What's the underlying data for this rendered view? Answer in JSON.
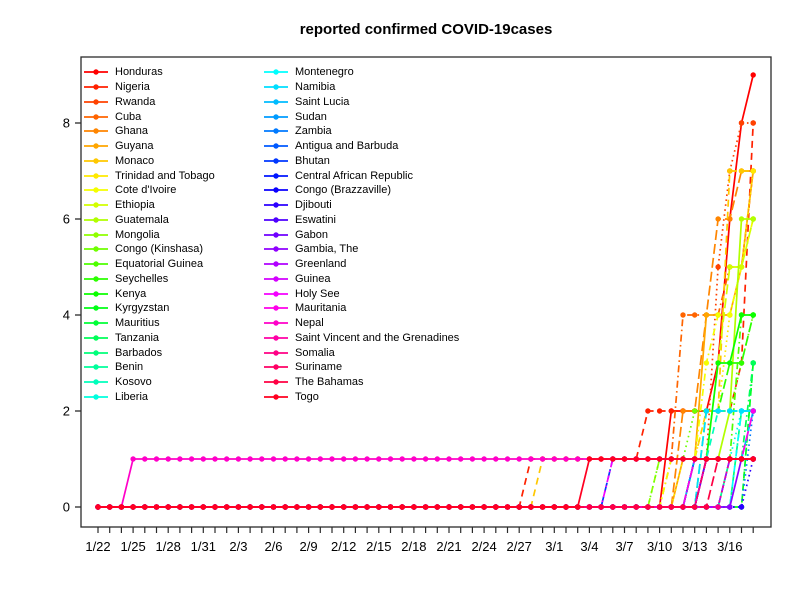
{
  "chart_data": {
    "type": "line",
    "title": "reported confirmed COVID-19cases",
    "xlabel": "",
    "ylabel": "",
    "background": "#FFFFFF",
    "axis_color": "#000000",
    "grid": false,
    "legend_position": "top-left inside plot, two columns",
    "ylim": [
      0,
      9
    ],
    "y_ticks": [
      0,
      2,
      4,
      6,
      8
    ],
    "n_days": 57,
    "x_start_date": "1/22",
    "x_label_step_days": 3,
    "x_tick_labels": [
      "1/22",
      "1/25",
      "1/28",
      "1/31",
      "2/3",
      "2/6",
      "2/9",
      "2/12",
      "2/15",
      "2/18",
      "2/21",
      "2/24",
      "2/27",
      "3/1",
      "3/4",
      "3/7",
      "3/10",
      "3/13",
      "3/16"
    ],
    "steps_format": "steps = [day_index_from_1/22, cumulative_cases]; series value is 0 before first step and holds last value through day 56",
    "series": [
      {
        "name": "Honduras",
        "color": "#FF0000",
        "line_style": "solid",
        "steps": [
          [
            49,
            2
          ],
          [
            53,
            3
          ],
          [
            54,
            6
          ],
          [
            55,
            8
          ],
          [
            56,
            9
          ]
        ],
        "final": 9
      },
      {
        "name": "Nigeria",
        "color": "#FF2100",
        "line_style": "dashed",
        "steps": [
          [
            37,
            1
          ],
          [
            47,
            2
          ],
          [
            55,
            3
          ],
          [
            56,
            8
          ]
        ],
        "final": 8
      },
      {
        "name": "Rwanda",
        "color": "#FF4200",
        "line_style": "dotted",
        "steps": [
          [
            52,
            1
          ],
          [
            53,
            5
          ],
          [
            54,
            7
          ],
          [
            55,
            8
          ]
        ],
        "final": 8
      },
      {
        "name": "Cuba",
        "color": "#FF6400",
        "line_style": "dotdash",
        "steps": [
          [
            49,
            1
          ],
          [
            50,
            4
          ],
          [
            54,
            5
          ],
          [
            56,
            7
          ]
        ],
        "final": 7
      },
      {
        "name": "Ghana",
        "color": "#FF8500",
        "line_style": "longdash",
        "steps": [
          [
            50,
            2
          ],
          [
            52,
            4
          ],
          [
            53,
            6
          ],
          [
            55,
            7
          ]
        ],
        "final": 7
      },
      {
        "name": "Guyana",
        "color": "#FFA600",
        "line_style": "solid",
        "steps": [
          [
            50,
            1
          ],
          [
            52,
            4
          ],
          [
            55,
            5
          ],
          [
            56,
            7
          ]
        ],
        "final": 7
      },
      {
        "name": "Monaco",
        "color": "#FFC800",
        "line_style": "dashed",
        "steps": [
          [
            38,
            1
          ],
          [
            52,
            2
          ],
          [
            54,
            7
          ]
        ],
        "final": 7
      },
      {
        "name": "Trinidad and Tobago",
        "color": "#FFE900",
        "line_style": "dotted",
        "steps": [
          [
            50,
            1
          ],
          [
            52,
            2
          ],
          [
            54,
            4
          ],
          [
            55,
            5
          ],
          [
            56,
            7
          ]
        ],
        "final": 7
      },
      {
        "name": "Cote d'Ivoire",
        "color": "#F4FF00",
        "line_style": "dotdash",
        "steps": [
          [
            49,
            1
          ],
          [
            52,
            3
          ],
          [
            53,
            4
          ],
          [
            55,
            5
          ],
          [
            56,
            6
          ]
        ],
        "final": 6
      },
      {
        "name": "Ethiopia",
        "color": "#D3FF00",
        "line_style": "longdash",
        "steps": [
          [
            51,
            1
          ],
          [
            53,
            3
          ],
          [
            54,
            5
          ],
          [
            56,
            6
          ]
        ],
        "final": 6
      },
      {
        "name": "Guatemala",
        "color": "#B1FF00",
        "line_style": "solid",
        "steps": [
          [
            52,
            1
          ],
          [
            54,
            2
          ],
          [
            55,
            6
          ]
        ],
        "final": 6
      },
      {
        "name": "Mongolia",
        "color": "#90FF00",
        "line_style": "dashed",
        "steps": [
          [
            48,
            1
          ]
        ],
        "final": 1
      },
      {
        "name": "Congo (Kinshasa)",
        "color": "#6FFF00",
        "line_style": "dotted",
        "steps": [
          [
            48,
            1
          ],
          [
            51,
            2
          ],
          [
            55,
            3
          ],
          [
            56,
            4
          ]
        ],
        "final": 4
      },
      {
        "name": "Equatorial Guinea",
        "color": "#4EFF00",
        "line_style": "dotdash",
        "steps": [
          [
            52,
            1
          ],
          [
            55,
            4
          ]
        ],
        "final": 4
      },
      {
        "name": "Seychelles",
        "color": "#2CFF00",
        "line_style": "longdash",
        "steps": [
          [
            52,
            2
          ],
          [
            54,
            3
          ],
          [
            56,
            4
          ]
        ],
        "final": 4
      },
      {
        "name": "Kenya",
        "color": "#0BFF00",
        "line_style": "solid",
        "steps": [
          [
            51,
            1
          ],
          [
            53,
            3
          ],
          [
            55,
            4
          ]
        ],
        "final": 4
      },
      {
        "name": "Kyrgyzstan",
        "color": "#00FF16",
        "line_style": "dashed",
        "steps": [
          [
            56,
            3
          ]
        ],
        "final": 3
      },
      {
        "name": "Mauritius",
        "color": "#00FF37",
        "line_style": "dotted",
        "steps": [
          [
            56,
            3
          ]
        ],
        "final": 3
      },
      {
        "name": "Tanzania",
        "color": "#00FF59",
        "line_style": "dotdash",
        "steps": [
          [
            54,
            1
          ],
          [
            56,
            3
          ]
        ],
        "final": 3
      },
      {
        "name": "Barbados",
        "color": "#00FF7A",
        "line_style": "longdash",
        "steps": [
          [
            55,
            2
          ]
        ],
        "final": 2
      },
      {
        "name": "Benin",
        "color": "#00FF9B",
        "line_style": "solid",
        "steps": [
          [
            54,
            1
          ]
        ],
        "final": 1
      },
      {
        "name": "Kosovo",
        "color": "#00FFBC",
        "line_style": "dashed",
        "steps": [
          [
            51,
            1
          ],
          [
            53,
            2
          ]
        ],
        "final": 2
      },
      {
        "name": "Liberia",
        "color": "#00FFDE",
        "line_style": "dotted",
        "steps": [
          [
            54,
            1
          ],
          [
            55,
            2
          ]
        ],
        "final": 2
      },
      {
        "name": "Montenegro",
        "color": "#00FFFF",
        "line_style": "dotdash",
        "steps": [
          [
            55,
            2
          ]
        ],
        "final": 2
      },
      {
        "name": "Namibia",
        "color": "#00DEFF",
        "line_style": "longdash",
        "steps": [
          [
            52,
            2
          ]
        ],
        "final": 2
      },
      {
        "name": "Saint Lucia",
        "color": "#00BCFF",
        "line_style": "solid",
        "steps": [
          [
            51,
            1
          ],
          [
            56,
            2
          ]
        ],
        "final": 2
      },
      {
        "name": "Sudan",
        "color": "#009BFF",
        "line_style": "dashed",
        "steps": [
          [
            51,
            1
          ]
        ],
        "final": 1
      },
      {
        "name": "Zambia",
        "color": "#007AFF",
        "line_style": "dotted",
        "steps": [
          [
            56,
            2
          ]
        ],
        "final": 2
      },
      {
        "name": "Antigua and Barbuda",
        "color": "#0059FF",
        "line_style": "dotdash",
        "steps": [
          [
            51,
            1
          ]
        ],
        "final": 1
      },
      {
        "name": "Bhutan",
        "color": "#0037FF",
        "line_style": "longdash",
        "steps": [
          [
            44,
            1
          ]
        ],
        "final": 1
      },
      {
        "name": "Central African Republic",
        "color": "#0016FF",
        "line_style": "solid",
        "steps": [
          [
            52,
            1
          ]
        ],
        "final": 1
      },
      {
        "name": "Congo (Brazzaville)",
        "color": "#0B00FF",
        "line_style": "dashed",
        "steps": [
          [
            52,
            1
          ]
        ],
        "final": 1
      },
      {
        "name": "Djibouti",
        "color": "#2C00FF",
        "line_style": "dotted",
        "steps": [
          [
            56,
            1
          ]
        ],
        "final": 1
      },
      {
        "name": "Eswatini",
        "color": "#4E00FF",
        "line_style": "dotdash",
        "steps": [
          [
            52,
            1
          ]
        ],
        "final": 1
      },
      {
        "name": "Gabon",
        "color": "#6F00FF",
        "line_style": "longdash",
        "steps": [
          [
            52,
            1
          ]
        ],
        "final": 1
      },
      {
        "name": "Gambia, The",
        "color": "#9000FF",
        "line_style": "solid",
        "steps": [
          [
            55,
            1
          ]
        ],
        "final": 1
      },
      {
        "name": "Greenland",
        "color": "#B100FF",
        "line_style": "dashed",
        "steps": [
          [
            54,
            1
          ]
        ],
        "final": 1
      },
      {
        "name": "Guinea",
        "color": "#D300FF",
        "line_style": "dotted",
        "steps": [
          [
            51,
            1
          ]
        ],
        "final": 1
      },
      {
        "name": "Holy See",
        "color": "#F400FF",
        "line_style": "dotdash",
        "steps": [
          [
            44,
            1
          ]
        ],
        "final": 1
      },
      {
        "name": "Mauritania",
        "color": "#FF00E9",
        "line_style": "longdash",
        "steps": [
          [
            51,
            1
          ],
          [
            56,
            2
          ]
        ],
        "final": 2
      },
      {
        "name": "Nepal",
        "color": "#FF00C8",
        "line_style": "solid",
        "steps": [
          [
            3,
            1
          ]
        ],
        "final": 1
      },
      {
        "name": "Saint Vincent and the Grenadines",
        "color": "#FF00A6",
        "line_style": "dashed",
        "steps": [
          [
            52,
            1
          ]
        ],
        "final": 1
      },
      {
        "name": "Somalia",
        "color": "#FF0085",
        "line_style": "dotted",
        "steps": [
          [
            54,
            1
          ]
        ],
        "final": 1
      },
      {
        "name": "Suriname",
        "color": "#FF0064",
        "line_style": "dotdash",
        "steps": [
          [
            52,
            1
          ]
        ],
        "final": 1
      },
      {
        "name": "The Bahamas",
        "color": "#FF0043",
        "line_style": "longdash",
        "steps": [
          [
            53,
            1
          ]
        ],
        "final": 1
      },
      {
        "name": "Togo",
        "color": "#FF0021",
        "line_style": "solid",
        "steps": [
          [
            42,
            1
          ]
        ],
        "final": 1
      }
    ]
  }
}
